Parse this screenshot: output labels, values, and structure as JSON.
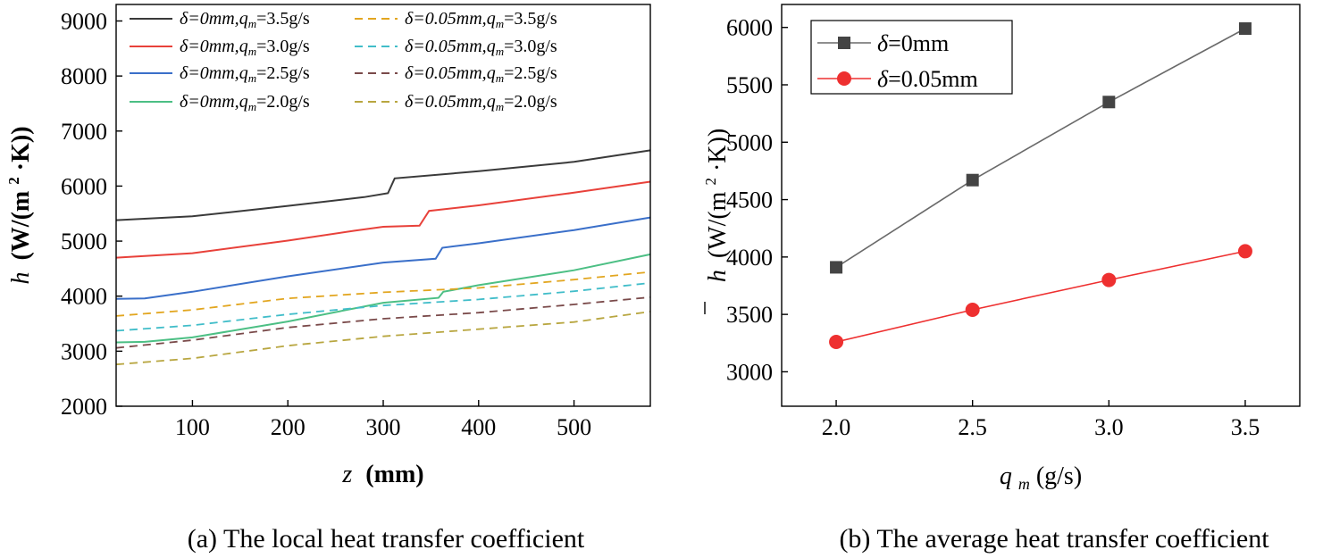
{
  "figure": {
    "caption_a": "(a) The local heat transfer coefficient",
    "caption_b": "(b) The average heat transfer coefficient"
  },
  "chart_data": [
    {
      "id": "a",
      "type": "line",
      "xlabel_sym": "z",
      "xlabel_unit": "(mm)",
      "ylabel_sym": "h",
      "ylabel_pre": "(W/(m",
      "ylabel_sup": "2",
      "ylabel_post": "·K))",
      "xlim": [
        20,
        580
      ],
      "ylim": [
        2000,
        9300
      ],
      "xticks": [
        100,
        200,
        300,
        400,
        500
      ],
      "yticks": [
        2000,
        3000,
        4000,
        5000,
        6000,
        7000,
        8000,
        9000
      ],
      "legend_position": "top",
      "series": [
        {
          "name": "δ=0mm,q_m=3.5g/s",
          "delta": "δ=0mm,",
          "flow": "=3.5g/s",
          "color": "#3a3a3a",
          "dash": false,
          "x": [
            20,
            100,
            200,
            280,
            305,
            312,
            400,
            500,
            580
          ],
          "y": [
            5380,
            5450,
            5640,
            5800,
            5870,
            6140,
            6270,
            6440,
            6650
          ]
        },
        {
          "name": "δ=0mm,q_m=3.0g/s",
          "delta": "δ=0mm,",
          "flow": "=3.0g/s",
          "color": "#e8413a",
          "dash": false,
          "x": [
            20,
            100,
            200,
            270,
            300,
            338,
            348,
            400,
            500,
            580
          ],
          "y": [
            4700,
            4780,
            5010,
            5190,
            5260,
            5280,
            5550,
            5650,
            5880,
            6080
          ]
        },
        {
          "name": "δ=0mm,q_m=2.5g/s",
          "delta": "δ=0mm,",
          "flow": "=2.5g/s",
          "color": "#3a6fc9",
          "dash": false,
          "x": [
            20,
            50,
            100,
            200,
            300,
            355,
            362,
            400,
            500,
            580
          ],
          "y": [
            3950,
            3960,
            4080,
            4360,
            4610,
            4680,
            4880,
            4960,
            5200,
            5430
          ]
        },
        {
          "name": "δ=0mm,q_m=2.0g/s",
          "delta": "δ=0mm,",
          "flow": "=2.0g/s",
          "color": "#4cbf84",
          "dash": false,
          "x": [
            20,
            50,
            100,
            200,
            300,
            358,
            363,
            400,
            500,
            580
          ],
          "y": [
            3160,
            3170,
            3250,
            3540,
            3880,
            3970,
            4080,
            4200,
            4470,
            4760
          ]
        },
        {
          "name": "δ=0.05mm,q_m=3.5g/s",
          "delta": "δ=0.05mm,",
          "flow": "=3.5g/s",
          "color": "#e2a620",
          "dash": true,
          "x": [
            20,
            100,
            200,
            300,
            400,
            500,
            580
          ],
          "y": [
            3640,
            3750,
            3960,
            4070,
            4150,
            4300,
            4440
          ]
        },
        {
          "name": "δ=0.05mm,q_m=3.0g/s",
          "delta": "δ=0.05mm,",
          "flow": "=3.0g/s",
          "color": "#41bdc9",
          "dash": true,
          "x": [
            20,
            100,
            200,
            300,
            400,
            500,
            580
          ],
          "y": [
            3370,
            3470,
            3670,
            3830,
            3940,
            4090,
            4240
          ]
        },
        {
          "name": "δ=0.05mm,q_m=2.5g/s",
          "delta": "δ=0.05mm,",
          "flow": "=2.5g/s",
          "color": "#7a4a4a",
          "dash": true,
          "x": [
            20,
            100,
            200,
            300,
            400,
            500,
            580
          ],
          "y": [
            3060,
            3200,
            3430,
            3590,
            3700,
            3850,
            3980
          ]
        },
        {
          "name": "δ=0.05mm,q_m=2.0g/s",
          "delta": "δ=0.05mm,",
          "flow": "=2.0g/s",
          "color": "#b8a640",
          "dash": true,
          "x": [
            20,
            100,
            200,
            300,
            400,
            500,
            580
          ],
          "y": [
            2760,
            2870,
            3100,
            3270,
            3400,
            3530,
            3720
          ]
        }
      ]
    },
    {
      "id": "b",
      "type": "line",
      "xlabel_sym": "q",
      "xlabel_sub": "m",
      "xlabel_unit": "(g/s)",
      "ylabel_sym": "h",
      "ylabel_pre": "(W/(m",
      "ylabel_sup": "2",
      "ylabel_post": "·K))",
      "xlim": [
        1.8,
        3.7
      ],
      "ylim": [
        2700,
        6200
      ],
      "xticks": [
        "2.0",
        "2.5",
        "3.0",
        "3.5"
      ],
      "yticks": [
        3000,
        3500,
        4000,
        4500,
        5000,
        5500,
        6000
      ],
      "legend_position": "top-left",
      "series": [
        {
          "name": "δ=0mm",
          "label": "=0mm",
          "color": "#444444",
          "line_color": "#6a6a6a",
          "marker": "square",
          "x": [
            2.0,
            2.5,
            3.0,
            3.5
          ],
          "y": [
            3910,
            4670,
            5350,
            5990
          ]
        },
        {
          "name": "δ=0.05mm",
          "label": "=0.05mm",
          "color": "#ee3030",
          "line_color": "#ee3030",
          "marker": "circle",
          "x": [
            2.0,
            2.5,
            3.0,
            3.5
          ],
          "y": [
            3260,
            3540,
            3800,
            4050
          ]
        }
      ]
    }
  ]
}
